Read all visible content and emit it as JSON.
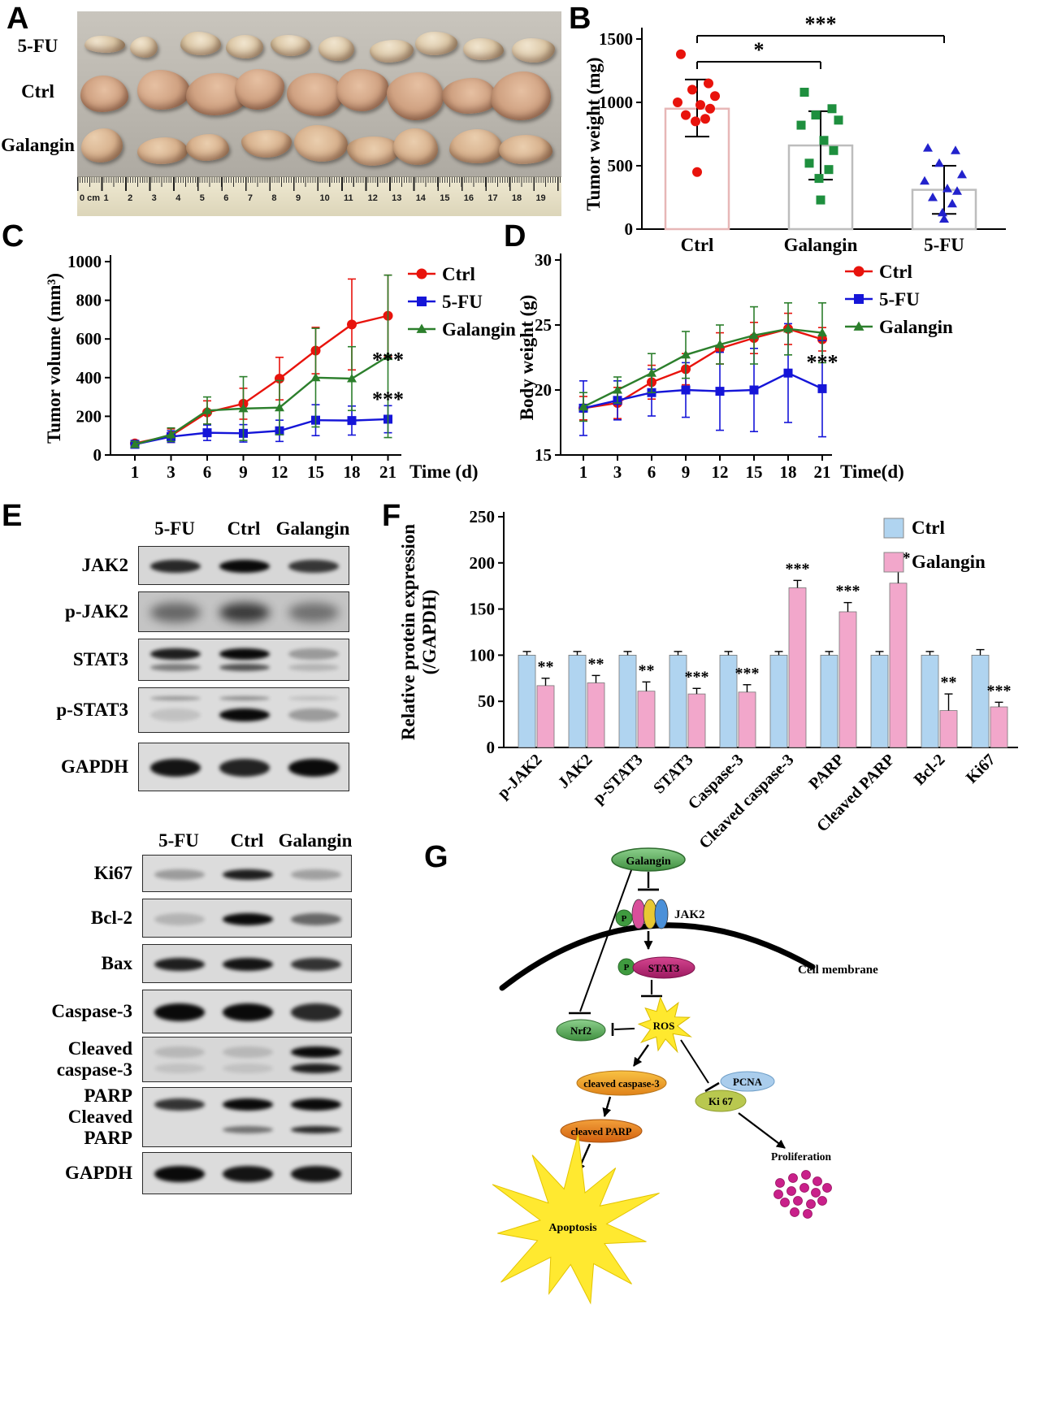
{
  "figure": {
    "panel_labels": {
      "A": "A",
      "B": "B",
      "C": "C",
      "D": "D",
      "E": "E",
      "F": "F",
      "G": "G"
    }
  },
  "panel_a": {
    "rows": [
      {
        "label": "5-FU",
        "count": 10,
        "size": "small"
      },
      {
        "label": "Ctrl",
        "count": 9,
        "size": "large"
      },
      {
        "label": "Galangin",
        "count": 9,
        "size": "medium"
      }
    ],
    "ruler_labels": [
      "0 cm",
      "1",
      "2",
      "3",
      "4",
      "5",
      "6",
      "7",
      "8",
      "9",
      "10",
      "11",
      "12",
      "13",
      "14",
      "15",
      "16",
      "17",
      "18",
      "19"
    ]
  },
  "chart_data": [
    {
      "id": "B",
      "type": "scatter",
      "ylabel": "Tumor weight (mg)",
      "ylim": [
        0,
        1500
      ],
      "yticks": [
        0,
        500,
        1000,
        1500
      ],
      "categories": [
        "Ctrl",
        "Galangin",
        "5-FU"
      ],
      "means": [
        950,
        660,
        310
      ],
      "sd_low": [
        730,
        390,
        120
      ],
      "sd_high": [
        1180,
        930,
        500
      ],
      "bar_colors": [
        "#e7b7b7",
        "#bdbdbd",
        "#bdbdbd"
      ],
      "marker_colors": [
        "#e8130c",
        "#1e8f3e",
        "#2222cc"
      ],
      "marker_shapes": [
        "circle",
        "square",
        "triangle"
      ],
      "points": [
        [
          1380,
          1150,
          1100,
          1050,
          1000,
          980,
          950,
          900,
          870,
          850,
          450
        ],
        [
          1080,
          950,
          900,
          860,
          820,
          700,
          620,
          520,
          470,
          400,
          230
        ],
        [
          640,
          620,
          520,
          430,
          380,
          320,
          300,
          250,
          200,
          130,
          80
        ]
      ],
      "significance": [
        {
          "from": 0,
          "to": 2,
          "label": "***"
        },
        {
          "from": 0,
          "to": 1,
          "label": "*"
        }
      ]
    },
    {
      "id": "C",
      "type": "line",
      "ylabel": "Tumor volume (mm³)",
      "xlabel": "Time (d)",
      "ylim": [
        0,
        1000
      ],
      "yticks": [
        0,
        200,
        400,
        600,
        800,
        1000
      ],
      "x": [
        1,
        3,
        6,
        9,
        12,
        15,
        18,
        21
      ],
      "series": [
        {
          "name": "Ctrl",
          "color": "#e8130c",
          "marker": "circle",
          "values": [
            60,
            100,
            220,
            265,
            395,
            540,
            675,
            720
          ],
          "err": [
            15,
            35,
            60,
            80,
            110,
            120,
            235,
            210
          ]
        },
        {
          "name": "5-FU",
          "color": "#1515d8",
          "marker": "square",
          "values": [
            55,
            95,
            115,
            112,
            125,
            180,
            178,
            185
          ],
          "err": [
            15,
            30,
            40,
            45,
            55,
            80,
            75,
            70
          ]
        },
        {
          "name": "Galangin",
          "color": "#2c7f2c",
          "marker": "triangle",
          "values": [
            55,
            105,
            230,
            240,
            245,
            400,
            395,
            510
          ],
          "err": [
            15,
            35,
            70,
            165,
            140,
            255,
            165,
            420
          ]
        }
      ],
      "annotations": [
        {
          "text": "***",
          "x": 21,
          "y": 455
        },
        {
          "text": "***",
          "x": 21,
          "y": 252
        }
      ]
    },
    {
      "id": "D",
      "type": "line",
      "ylabel": "Body weight (g)",
      "xlabel": "Time(d)",
      "ylim": [
        15,
        30
      ],
      "yticks": [
        15,
        20,
        25,
        30
      ],
      "x": [
        1,
        3,
        6,
        9,
        12,
        15,
        18,
        21
      ],
      "series": [
        {
          "name": "Ctrl",
          "color": "#e8130c",
          "marker": "circle",
          "values": [
            18.6,
            19.0,
            20.6,
            21.6,
            23.2,
            24.0,
            24.7,
            23.9
          ],
          "err": [
            0.9,
            1.2,
            1.3,
            1.2,
            1.2,
            1.2,
            1.2,
            0.9
          ]
        },
        {
          "name": "5-FU",
          "color": "#1515d8",
          "marker": "square",
          "values": [
            18.6,
            19.2,
            19.8,
            20.0,
            19.9,
            20.0,
            21.3,
            20.1
          ],
          "err": [
            2.1,
            1.5,
            1.8,
            2.1,
            3.0,
            3.2,
            3.8,
            3.7
          ]
        },
        {
          "name": "Galangin",
          "color": "#2c7f2c",
          "marker": "triangle",
          "values": [
            18.7,
            20.0,
            21.3,
            22.7,
            23.5,
            24.2,
            24.7,
            24.4
          ],
          "err": [
            1.1,
            1.0,
            1.5,
            1.8,
            1.5,
            2.2,
            2.0,
            2.3
          ]
        }
      ],
      "annotations": [
        {
          "text": "***",
          "x": 21,
          "y": 21.6
        }
      ]
    },
    {
      "id": "F",
      "type": "grouped-bar",
      "ylabel_lines": [
        "Relative protein expression",
        "(/GAPDH)"
      ],
      "ylim": [
        0,
        250
      ],
      "yticks": [
        0,
        50,
        100,
        150,
        200,
        250
      ],
      "categories": [
        "p-JAK2",
        "JAK2",
        "p-STAT3",
        "STAT3",
        "Caspase-3",
        "Cleaved caspase-3",
        "PARP",
        "Cleaved PARP",
        "Bcl-2",
        "Ki67"
      ],
      "series": [
        {
          "name": "Ctrl",
          "color": "#b0d4f0",
          "values": [
            100,
            100,
            100,
            100,
            100,
            100,
            100,
            100,
            100,
            100
          ],
          "err": [
            4,
            4,
            4,
            4,
            4,
            4,
            4,
            4,
            4,
            6
          ]
        },
        {
          "name": "Galangin",
          "color": "#f2a7cb",
          "values": [
            67,
            70,
            61,
            58,
            60,
            173,
            147,
            178,
            40,
            44
          ],
          "err": [
            8,
            8,
            10,
            6,
            8,
            8,
            10,
            15,
            18,
            5
          ]
        }
      ],
      "significance": [
        "**",
        "**",
        "**",
        "***",
        "***",
        "***",
        "***",
        "***",
        "**",
        "***"
      ]
    }
  ],
  "blots": {
    "set1": {
      "headers": [
        "5-FU",
        "Ctrl",
        "Galangin"
      ],
      "rows": [
        {
          "label_lines": [
            "JAK2"
          ],
          "bg": 0.14,
          "bands": [
            {
              "y": 0.5,
              "h": 16,
              "i": [
                0.85,
                1.0,
                0.78
              ]
            }
          ]
        },
        {
          "label_lines": [
            "p-JAK2"
          ],
          "bg": 0.3,
          "bands": [
            {
              "y": 0.5,
              "h": 24,
              "blur": 6,
              "i": [
                0.5,
                0.75,
                0.45
              ]
            }
          ]
        },
        {
          "label_lines": [
            "STAT3"
          ],
          "bg": 0.12,
          "bands": [
            {
              "y": 0.34,
              "h": 14,
              "i": [
                0.9,
                1.0,
                0.3
              ]
            },
            {
              "y": 0.66,
              "h": 9,
              "i": [
                0.45,
                0.65,
                0.18
              ]
            }
          ]
        },
        {
          "label_lines": [
            "p-STAT3"
          ],
          "bg": 0.1,
          "bands": [
            {
              "y": 0.22,
              "h": 5,
              "i": [
                0.35,
                0.4,
                0.15
              ]
            },
            {
              "y": 0.58,
              "h": 16,
              "i": [
                0.12,
                1.0,
                0.3
              ]
            }
          ]
        },
        {
          "label_lines": [
            "GAPDH"
          ],
          "bg": 0.1,
          "bands": [
            {
              "y": 0.5,
              "h": 22,
              "i": [
                0.95,
                0.88,
                1.0
              ]
            }
          ]
        }
      ]
    },
    "set2": {
      "headers": [
        "5-FU",
        "Ctrl",
        "Galangin"
      ],
      "rows": [
        {
          "label_lines": [
            "Ki67"
          ],
          "bg": 0.1,
          "bands": [
            {
              "y": 0.5,
              "h": 13,
              "i": [
                0.3,
                0.9,
                0.28
              ]
            }
          ]
        },
        {
          "label_lines": [
            "Bcl-2"
          ],
          "bg": 0.12,
          "bands": [
            {
              "y": 0.5,
              "h": 15,
              "i": [
                0.18,
                1.0,
                0.55
              ]
            }
          ]
        },
        {
          "label_lines": [
            "Bax"
          ],
          "bg": 0.12,
          "bands": [
            {
              "y": 0.5,
              "h": 16,
              "i": [
                0.9,
                0.95,
                0.8
              ]
            }
          ]
        },
        {
          "label_lines": [
            "Caspase-3"
          ],
          "bg": 0.1,
          "bands": [
            {
              "y": 0.5,
              "h": 22,
              "i": [
                1.0,
                1.0,
                0.85
              ]
            }
          ]
        },
        {
          "label_lines": [
            "Cleaved",
            "caspase-3"
          ],
          "bg": 0.14,
          "bands": [
            {
              "y": 0.32,
              "h": 14,
              "i": [
                0.15,
                0.15,
                1.0
              ]
            },
            {
              "y": 0.68,
              "h": 12,
              "i": [
                0.1,
                0.1,
                0.9
              ]
            }
          ]
        },
        {
          "label_lines": [
            "PARP",
            "Cleaved",
            "PARP"
          ],
          "bg": 0.1,
          "bands": [
            {
              "y": 0.28,
              "h": 15,
              "i": [
                0.8,
                1.0,
                1.0
              ]
            },
            {
              "y": 0.7,
              "h": 9,
              "i": [
                0.0,
                0.5,
                0.85
              ]
            }
          ]
        },
        {
          "label_lines": [
            "GAPDH"
          ],
          "bg": 0.1,
          "bands": [
            {
              "y": 0.5,
              "h": 20,
              "i": [
                1.0,
                0.95,
                0.95
              ]
            }
          ]
        }
      ]
    }
  },
  "pathway": {
    "galangin": "Galangin",
    "p": "P",
    "jak2": "JAK2",
    "stat3": "STAT3",
    "nrf2": "Nrf2",
    "ros": "ROS",
    "cleaved_caspase3": "cleaved caspase-3",
    "cleaved_parp": "cleaved PARP",
    "apoptosis": "Apoptosis",
    "pcna": "PCNA",
    "ki67": "Ki 67",
    "proliferation": "Proliferation",
    "cell_membrane": "Cell membrane"
  }
}
